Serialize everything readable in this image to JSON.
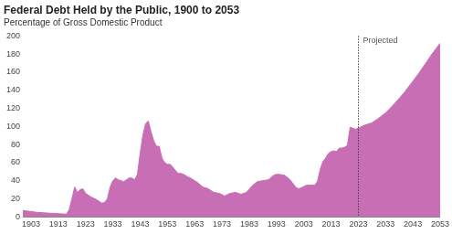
{
  "chart_data": {
    "type": "area",
    "title": "Federal Debt Held by the Public, 1900 to 2053",
    "subtitle": "Percentage of Gross Domestic Product",
    "x": [
      1900,
      1905,
      1910,
      1916,
      1917,
      1918,
      1919,
      1920,
      1921,
      1922,
      1923,
      1925,
      1927,
      1929,
      1930,
      1931,
      1932,
      1933,
      1934,
      1935,
      1936,
      1937,
      1938,
      1939,
      1940,
      1941,
      1942,
      1943,
      1944,
      1945,
      1946,
      1947,
      1948,
      1949,
      1950,
      1951,
      1952,
      1953,
      1954,
      1955,
      1956,
      1957,
      1958,
      1959,
      1960,
      1962,
      1964,
      1966,
      1968,
      1970,
      1972,
      1974,
      1976,
      1978,
      1980,
      1982,
      1984,
      1986,
      1988,
      1990,
      1992,
      1993,
      1994,
      1996,
      1998,
      2000,
      2001,
      2002,
      2004,
      2006,
      2007,
      2008,
      2009,
      2010,
      2011,
      2012,
      2013,
      2014,
      2015,
      2016,
      2017,
      2018,
      2019,
      2020,
      2021,
      2022,
      2023,
      2025,
      2028,
      2030,
      2033,
      2035,
      2038,
      2040,
      2043,
      2045,
      2048,
      2050,
      2053
    ],
    "values": [
      7,
      5,
      4,
      3,
      8,
      20,
      33,
      27,
      30,
      31,
      26,
      22,
      19,
      15,
      16,
      20,
      33,
      40,
      43,
      41,
      40,
      39,
      41,
      43,
      43,
      41,
      47,
      70,
      90,
      103,
      106,
      94,
      84,
      78,
      78,
      65,
      60,
      58,
      58,
      55,
      51,
      48,
      48,
      47,
      45,
      42,
      38,
      33,
      31,
      27,
      26,
      23,
      26,
      27,
      25,
      27,
      34,
      39,
      40,
      41,
      46,
      47,
      47,
      46,
      41,
      33,
      31,
      32,
      35,
      35,
      35,
      39,
      52,
      61,
      65,
      70,
      72,
      73,
      72,
      76,
      76,
      77,
      79,
      99,
      98,
      97,
      98,
      101,
      104,
      108,
      115,
      121,
      131,
      138,
      150,
      158,
      171,
      180,
      192
    ],
    "color": "#c86eb4",
    "xlim": [
      1900,
      2053
    ],
    "xticks": [
      1903,
      1913,
      1923,
      1933,
      1943,
      1953,
      1963,
      1973,
      1983,
      1993,
      2003,
      2013,
      2023,
      2033,
      2043,
      2053
    ],
    "ylim": [
      0,
      200
    ],
    "yticks": [
      0,
      20,
      40,
      60,
      80,
      100,
      120,
      140,
      160,
      180,
      200
    ],
    "grid": false,
    "annotations": [
      {
        "x": 2023,
        "text": "Projected"
      }
    ]
  }
}
